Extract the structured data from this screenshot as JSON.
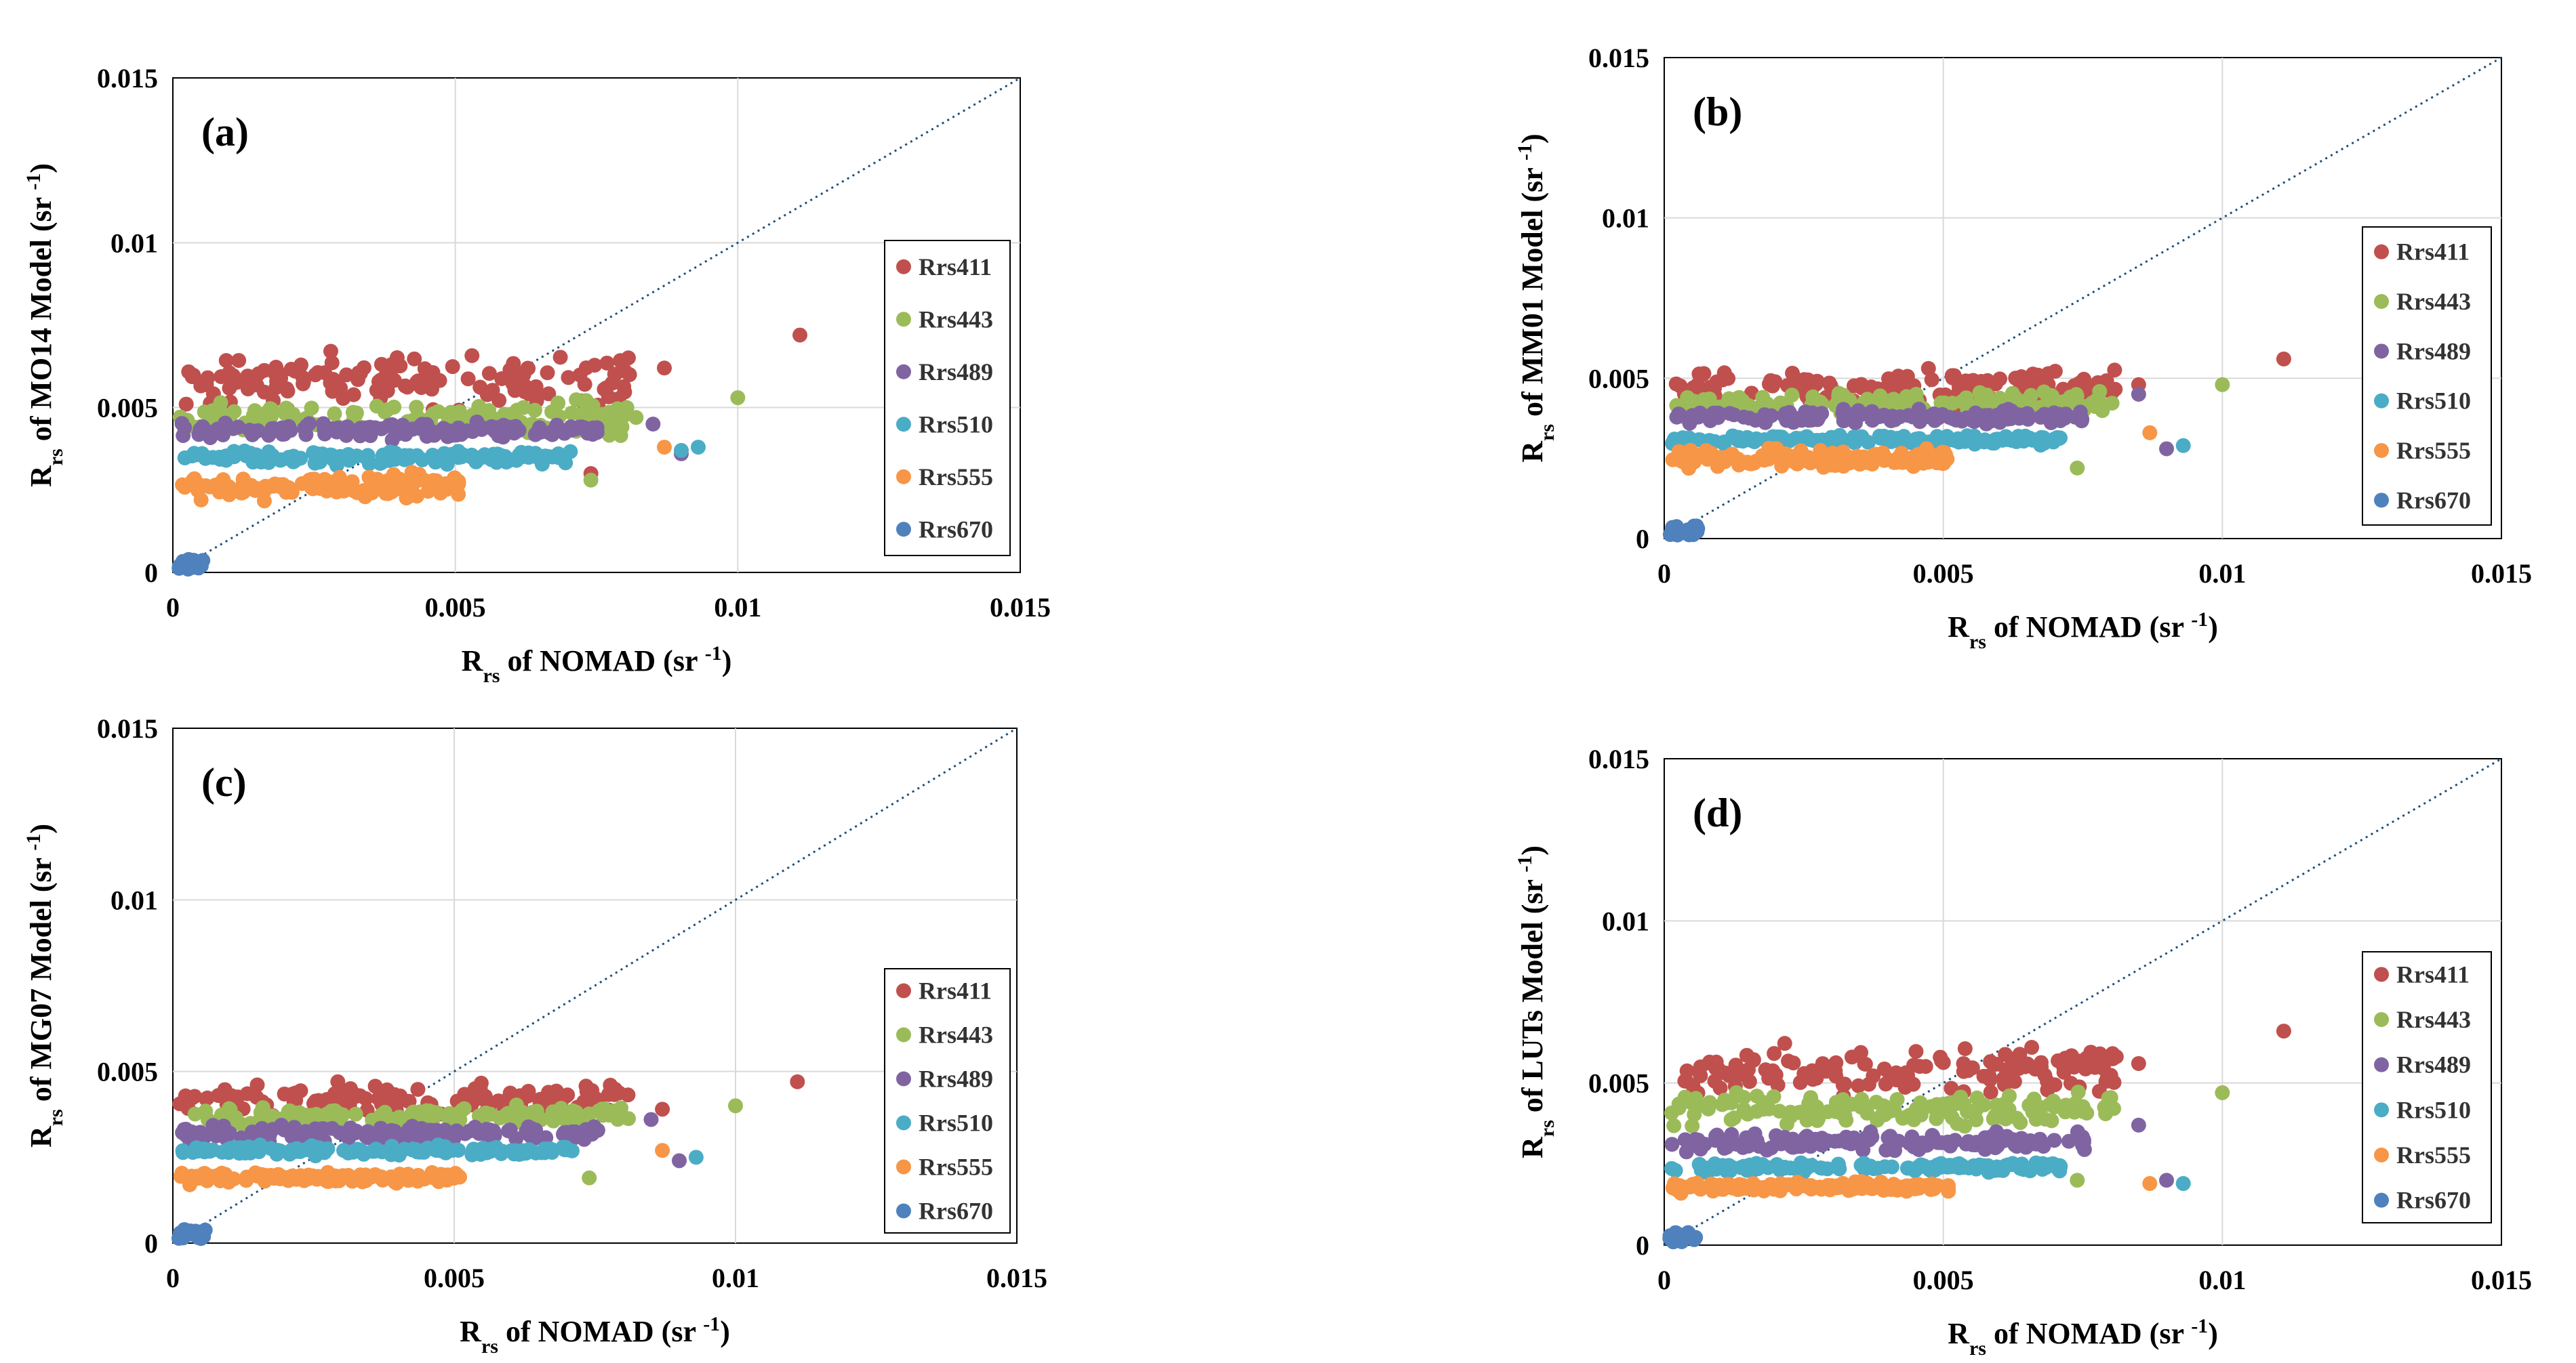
{
  "chart_data": [
    {
      "type": "scatter",
      "panel_label": "(a)",
      "ylabel": "R_rs of MO14 Model (sr^-1)",
      "ylabel_parts": {
        "main": "R",
        "sub": "rs",
        "rest": " of MO14 Model  (sr ",
        "sup": "-1",
        "close": ")"
      },
      "xlabel": "R_rs of NOMAD (sr^-1)",
      "xlabel_parts": {
        "main": "R",
        "sub": "rs",
        "rest": " of NOMAD  (sr ",
        "sup": "-1",
        "close": ")"
      },
      "xlim": [
        0,
        0.015
      ],
      "ylim": [
        0,
        0.015
      ],
      "xticks": [
        0,
        0.005,
        0.01,
        0.015
      ],
      "yticks": [
        0,
        0.005,
        0.01,
        0.015
      ],
      "xtick_labels": [
        "0",
        "0.005",
        "0.01",
        "0.015"
      ],
      "ytick_labels": [
        "0",
        "0.005",
        "0.01",
        "0.015"
      ],
      "reference_line": "1:1 dotted",
      "legend_position": "right",
      "series_profile": [
        {
          "name": "Rrs411",
          "yCenter": 0.0058,
          "ySpread": 0.0011,
          "xmax": 0.008,
          "outliers": [
            [
              0.0111,
              0.0072
            ],
            [
              0.0087,
              0.0062
            ],
            [
              0.0074,
              0.003
            ]
          ]
        },
        {
          "name": "Rrs443",
          "yCenter": 0.0047,
          "ySpread": 0.0007,
          "xmax": 0.008,
          "outliers": [
            [
              0.01,
              0.0053
            ],
            [
              0.0074,
              0.0028
            ],
            [
              0.0082,
              0.0047
            ]
          ]
        },
        {
          "name": "Rrs489",
          "yCenter": 0.0043,
          "ySpread": 0.0003,
          "xmax": 0.0075,
          "outliers": [
            [
              0.009,
              0.0036
            ],
            [
              0.0085,
              0.0045
            ]
          ]
        },
        {
          "name": "Rrs510",
          "yCenter": 0.0035,
          "ySpread": 0.0003,
          "xmax": 0.007,
          "outliers": [
            [
              0.0093,
              0.0038
            ],
            [
              0.009,
              0.0037
            ]
          ]
        },
        {
          "name": "Rrs555",
          "yCenter": 0.0026,
          "ySpread": 0.0005,
          "xmax": 0.005,
          "outliers": [
            [
              0.0087,
              0.0038
            ],
            [
              0.0005,
              0.0022
            ]
          ]
        },
        {
          "name": "Rrs670",
          "yCenter": 0.0003,
          "ySpread": 0.0002,
          "xmax": 0.0005,
          "outliers": []
        }
      ]
    },
    {
      "type": "scatter",
      "panel_label": "(b)",
      "ylabel": "R_rs of MM01 Model (sr^-1)",
      "ylabel_parts": {
        "main": "R",
        "sub": "rs",
        "rest": " of MM01 Model  (sr ",
        "sup": "-1",
        "close": ")"
      },
      "xlabel": "R_rs of NOMAD (sr^-1)",
      "xlabel_parts": {
        "main": "R",
        "sub": "rs",
        "rest": " of NOMAD  (sr ",
        "sup": "-1",
        "close": ")"
      },
      "xlim": [
        0,
        0.015
      ],
      "ylim": [
        0,
        0.015
      ],
      "xticks": [
        0,
        0.005,
        0.01,
        0.015
      ],
      "yticks": [
        0,
        0.005,
        0.01,
        0.015
      ],
      "xtick_labels": [
        "0",
        "0.005",
        "0.01",
        "0.015"
      ],
      "ytick_labels": [
        "0",
        "0.005",
        "0.01",
        "0.015"
      ],
      "reference_line": "1:1 dotted",
      "legend_position": "right",
      "series_profile": [
        {
          "name": "Rrs411",
          "yCenter": 0.0047,
          "ySpread": 0.0008,
          "xmax": 0.008,
          "outliers": [
            [
              0.0111,
              0.0056
            ],
            [
              0.0085,
              0.0048
            ]
          ]
        },
        {
          "name": "Rrs443",
          "yCenter": 0.0042,
          "ySpread": 0.0005,
          "xmax": 0.008,
          "outliers": [
            [
              0.01,
              0.0048
            ],
            [
              0.0074,
              0.0022
            ]
          ]
        },
        {
          "name": "Rrs489",
          "yCenter": 0.0038,
          "ySpread": 0.0003,
          "xmax": 0.0075,
          "outliers": [
            [
              0.009,
              0.0028
            ],
            [
              0.0085,
              0.0045
            ]
          ]
        },
        {
          "name": "Rrs510",
          "yCenter": 0.0031,
          "ySpread": 0.0002,
          "xmax": 0.007,
          "outliers": [
            [
              0.0093,
              0.0029
            ]
          ]
        },
        {
          "name": "Rrs555",
          "yCenter": 0.0025,
          "ySpread": 0.0004,
          "xmax": 0.005,
          "outliers": [
            [
              0.0087,
              0.0033
            ]
          ]
        },
        {
          "name": "Rrs670",
          "yCenter": 0.0003,
          "ySpread": 0.0002,
          "xmax": 0.0005,
          "outliers": []
        }
      ]
    },
    {
      "type": "scatter",
      "panel_label": "(c)",
      "ylabel": "R_rs of MG07 Model (sr^-1)",
      "ylabel_parts": {
        "main": "R",
        "sub": "rs",
        "rest": " of MG07 Model  (sr ",
        "sup": "-1",
        "close": ")"
      },
      "xlabel": "R_rs of NOMAD (sr^-1)",
      "xlabel_parts": {
        "main": "R",
        "sub": "rs",
        "rest": " of NOMAD  (sr ",
        "sup": "-1",
        "close": ")"
      },
      "xlim": [
        0,
        0.015
      ],
      "ylim": [
        0,
        0.015
      ],
      "xticks": [
        0,
        0.005,
        0.01,
        0.015
      ],
      "yticks": [
        0,
        0.005,
        0.01,
        0.015
      ],
      "xtick_labels": [
        "0",
        "0.005",
        "0.01",
        "0.015"
      ],
      "ytick_labels": [
        "0",
        "0.005",
        "0.01",
        "0.015"
      ],
      "reference_line": "1:1 dotted",
      "legend_position": "right",
      "series_profile": [
        {
          "name": "Rrs411",
          "yCenter": 0.0042,
          "ySpread": 0.0006,
          "xmax": 0.008,
          "outliers": [
            [
              0.0111,
              0.0047
            ],
            [
              0.0087,
              0.0039
            ]
          ]
        },
        {
          "name": "Rrs443",
          "yCenter": 0.0037,
          "ySpread": 0.0004,
          "xmax": 0.008,
          "outliers": [
            [
              0.01,
              0.004
            ],
            [
              0.0074,
              0.0019
            ]
          ]
        },
        {
          "name": "Rrs489",
          "yCenter": 0.0032,
          "ySpread": 0.0003,
          "xmax": 0.0075,
          "outliers": [
            [
              0.009,
              0.0024
            ],
            [
              0.0085,
              0.0036
            ]
          ]
        },
        {
          "name": "Rrs510",
          "yCenter": 0.0027,
          "ySpread": 0.0002,
          "xmax": 0.007,
          "outliers": [
            [
              0.0093,
              0.0025
            ]
          ]
        },
        {
          "name": "Rrs555",
          "yCenter": 0.0019,
          "ySpread": 0.0002,
          "xmax": 0.005,
          "outliers": [
            [
              0.0087,
              0.0027
            ],
            [
              0.0003,
              0.0017
            ]
          ]
        },
        {
          "name": "Rrs670",
          "yCenter": 0.0002,
          "ySpread": 0.0002,
          "xmax": 0.0005,
          "outliers": []
        }
      ]
    },
    {
      "type": "scatter",
      "panel_label": "(d)",
      "ylabel": "R_rs of LUTs Model (sr^-1)",
      "ylabel_parts": {
        "main": "R",
        "sub": "rs",
        "rest": " of LUTs Model  (sr ",
        "sup": "-1",
        "close": ")"
      },
      "xlabel": "R_rs of NOMAD (sr^-1)",
      "xlabel_parts": {
        "main": "R",
        "sub": "rs",
        "rest": " of NOMAD  (sr ",
        "sup": "-1",
        "close": ")"
      },
      "xlim": [
        0,
        0.015
      ],
      "ylim": [
        0,
        0.015
      ],
      "xticks": [
        0,
        0.005,
        0.01,
        0.015
      ],
      "yticks": [
        0,
        0.005,
        0.01,
        0.015
      ],
      "xtick_labels": [
        "0",
        "0.005",
        "0.01",
        "0.015"
      ],
      "ytick_labels": [
        "0",
        "0.005",
        "0.01",
        "0.015"
      ],
      "reference_line": "1:1 dotted",
      "legend_position": "right",
      "series_profile": [
        {
          "name": "Rrs411",
          "yCenter": 0.0054,
          "ySpread": 0.001,
          "xmax": 0.008,
          "outliers": [
            [
              0.0111,
              0.0066
            ],
            [
              0.0085,
              0.0056
            ]
          ]
        },
        {
          "name": "Rrs443",
          "yCenter": 0.0042,
          "ySpread": 0.0007,
          "xmax": 0.008,
          "outliers": [
            [
              0.01,
              0.0047
            ],
            [
              0.0074,
              0.002
            ]
          ]
        },
        {
          "name": "Rrs489",
          "yCenter": 0.0032,
          "ySpread": 0.0004,
          "xmax": 0.0075,
          "outliers": [
            [
              0.009,
              0.002
            ],
            [
              0.0085,
              0.0037
            ]
          ]
        },
        {
          "name": "Rrs510",
          "yCenter": 0.0024,
          "ySpread": 0.0002,
          "xmax": 0.007,
          "outliers": [
            [
              0.0093,
              0.0019
            ]
          ]
        },
        {
          "name": "Rrs555",
          "yCenter": 0.0018,
          "ySpread": 0.0002,
          "xmax": 0.005,
          "outliers": [
            [
              0.0087,
              0.0019
            ],
            [
              0.0003,
              0.0016
            ]
          ]
        },
        {
          "name": "Rrs670",
          "yCenter": 0.0002,
          "ySpread": 0.0002,
          "xmax": 0.0005,
          "outliers": []
        }
      ]
    }
  ],
  "series_colors": {
    "Rrs411": "#c0504d",
    "Rrs443": "#9bbb59",
    "Rrs489": "#8064a2",
    "Rrs510": "#4bacc6",
    "Rrs555": "#f79646",
    "Rrs670": "#4f81bd"
  },
  "legend_labels": [
    "Rrs411",
    "Rrs443",
    "Rrs489",
    "Rrs510",
    "Rrs555",
    "Rrs670"
  ],
  "axis_color": "#000000",
  "grid_color": "#d9d9d9",
  "reference_line_color": "#1f4e79"
}
